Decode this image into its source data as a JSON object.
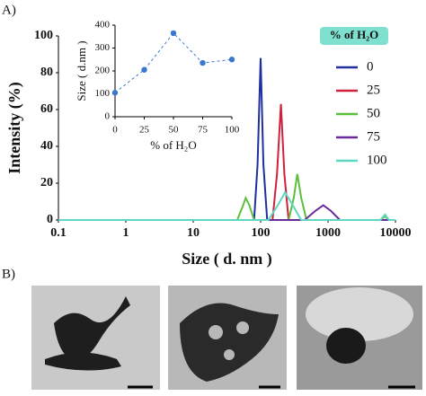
{
  "panel_labels": [
    "A)",
    "B)"
  ],
  "chart_data": [
    {
      "type": "line",
      "x_label": "Size ( d. nm )",
      "y_label": "Intensity (%)",
      "xscale": "log",
      "xlim": [
        0.1,
        10000
      ],
      "xticks": [
        0.1,
        1,
        10,
        100,
        1000,
        10000
      ],
      "ylim": [
        0,
        100
      ],
      "yticks": [
        0,
        20,
        40,
        60,
        80,
        100
      ],
      "legend_title": "% of H₂O",
      "legend": "right",
      "series": [
        {
          "name": "0",
          "color": "#1f2f9e",
          "x": [
            0.1,
            80,
            90,
            100,
            110,
            125,
            10000
          ],
          "values": [
            0,
            0,
            30,
            88,
            30,
            0,
            0
          ]
        },
        {
          "name": "25",
          "color": "#d0213a",
          "x": [
            0.1,
            150,
            175,
            200,
            225,
            260,
            10000
          ],
          "values": [
            0,
            0,
            25,
            63,
            25,
            0,
            0
          ]
        },
        {
          "name": "50",
          "color": "#5cbf3a",
          "x": [
            0.1,
            45,
            55,
            60,
            68,
            80,
            260,
            310,
            350,
            400,
            480,
            6000,
            7000,
            8000,
            10000
          ],
          "values": [
            0,
            0,
            8,
            12,
            8,
            0,
            0,
            12,
            25,
            12,
            0,
            0,
            2,
            0,
            0
          ]
        },
        {
          "name": "75",
          "color": "#6a2a9c",
          "x": [
            0.1,
            450,
            650,
            850,
            1100,
            1500,
            10000
          ],
          "values": [
            0,
            0,
            5,
            8,
            5,
            0,
            0
          ]
        },
        {
          "name": "100",
          "color": "#5ed8c0",
          "x": [
            0.1,
            130,
            180,
            230,
            300,
            400,
            6000,
            7000,
            8000,
            10000
          ],
          "values": [
            0,
            0,
            8,
            15,
            8,
            0,
            0,
            3,
            0,
            0
          ]
        }
      ]
    },
    {
      "type": "line",
      "x_label": "% of H₂O",
      "y_label": "Size ( d.nm )",
      "xscale": "linear",
      "xlim": [
        0,
        100
      ],
      "xticks": [
        0,
        25,
        50,
        75,
        100
      ],
      "ylim": [
        0,
        400
      ],
      "yticks": [
        0,
        100,
        200,
        300,
        400
      ],
      "series": [
        {
          "color": "#3a78d0",
          "x": [
            0,
            25,
            50,
            75,
            100
          ],
          "values": [
            105,
            205,
            365,
            235,
            250
          ]
        }
      ]
    }
  ]
}
